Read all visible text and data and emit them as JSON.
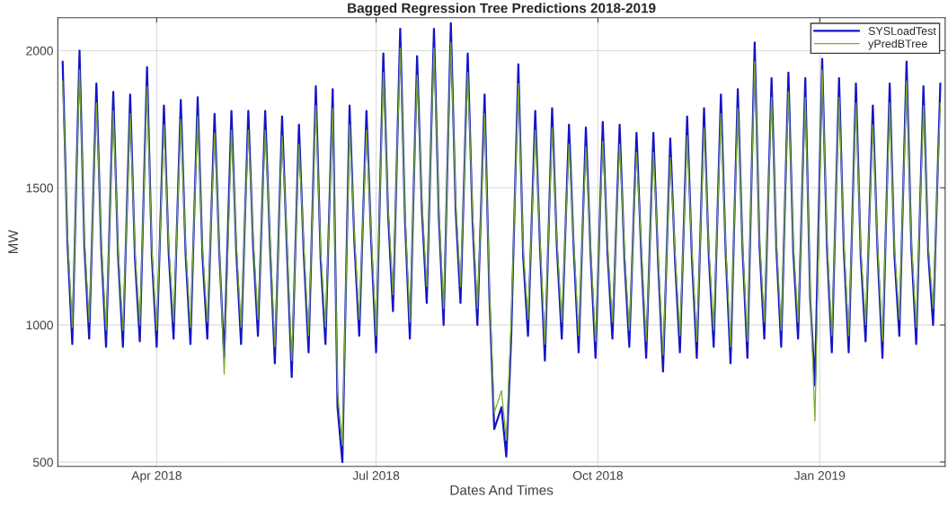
{
  "chart_data": {
    "type": "line",
    "title": "Bagged Regression Tree Predictions 2018-2019",
    "xlabel": "Dates And Times",
    "ylabel": "MW",
    "x": [
      "2018-02-21",
      "2018-02-23",
      "2018-02-25",
      "2018-02-28",
      "2018-03-02",
      "2018-03-04",
      "2018-03-07",
      "2018-03-09",
      "2018-03-11",
      "2018-03-14",
      "2018-03-16",
      "2018-03-18",
      "2018-03-21",
      "2018-03-23",
      "2018-03-25",
      "2018-03-28",
      "2018-03-30",
      "2018-04-01",
      "2018-04-04",
      "2018-04-06",
      "2018-04-08",
      "2018-04-11",
      "2018-04-13",
      "2018-04-15",
      "2018-04-18",
      "2018-04-20",
      "2018-04-22",
      "2018-04-25",
      "2018-04-27",
      "2018-04-29",
      "2018-05-02",
      "2018-05-04",
      "2018-05-06",
      "2018-05-09",
      "2018-05-11",
      "2018-05-13",
      "2018-05-16",
      "2018-05-18",
      "2018-05-20",
      "2018-05-23",
      "2018-05-25",
      "2018-05-27",
      "2018-05-30",
      "2018-06-01",
      "2018-06-03",
      "2018-06-06",
      "2018-06-08",
      "2018-06-10",
      "2018-06-13",
      "2018-06-15",
      "2018-06-17",
      "2018-06-20",
      "2018-06-22",
      "2018-06-24",
      "2018-06-27",
      "2018-06-29",
      "2018-07-01",
      "2018-07-04",
      "2018-07-06",
      "2018-07-08",
      "2018-07-11",
      "2018-07-13",
      "2018-07-15",
      "2018-07-18",
      "2018-07-20",
      "2018-07-22",
      "2018-07-25",
      "2018-07-27",
      "2018-07-29",
      "2018-08-01",
      "2018-08-03",
      "2018-08-05",
      "2018-08-08",
      "2018-08-10",
      "2018-08-12",
      "2018-08-15",
      "2018-08-17",
      "2018-08-19",
      "2018-08-22",
      "2018-08-24",
      "2018-08-26",
      "2018-08-29",
      "2018-08-31",
      "2018-09-02",
      "2018-09-05",
      "2018-09-07",
      "2018-09-09",
      "2018-09-12",
      "2018-09-14",
      "2018-09-16",
      "2018-09-19",
      "2018-09-21",
      "2018-09-23",
      "2018-09-26",
      "2018-09-28",
      "2018-09-30",
      "2018-10-03",
      "2018-10-05",
      "2018-10-07",
      "2018-10-10",
      "2018-10-12",
      "2018-10-14",
      "2018-10-17",
      "2018-10-19",
      "2018-10-21",
      "2018-10-24",
      "2018-10-26",
      "2018-10-28",
      "2018-10-31",
      "2018-11-02",
      "2018-11-04",
      "2018-11-07",
      "2018-11-09",
      "2018-11-11",
      "2018-11-14",
      "2018-11-16",
      "2018-11-18",
      "2018-11-21",
      "2018-11-23",
      "2018-11-25",
      "2018-11-28",
      "2018-11-30",
      "2018-12-02",
      "2018-12-05",
      "2018-12-07",
      "2018-12-09",
      "2018-12-12",
      "2018-12-14",
      "2018-12-16",
      "2018-12-19",
      "2018-12-21",
      "2018-12-23",
      "2018-12-26",
      "2018-12-28",
      "2018-12-30",
      "2019-01-02",
      "2019-01-04",
      "2019-01-06",
      "2019-01-09",
      "2019-01-11",
      "2019-01-13",
      "2019-01-16",
      "2019-01-18",
      "2019-01-20",
      "2019-01-23",
      "2019-01-25",
      "2019-01-27",
      "2019-01-30",
      "2019-02-01",
      "2019-02-03",
      "2019-02-06",
      "2019-02-08",
      "2019-02-10",
      "2019-02-13",
      "2019-02-15",
      "2019-02-17",
      "2019-02-20"
    ],
    "series": [
      {
        "name": "SYSLoadTest",
        "color": "#1414c8",
        "values": [
          1960,
          1300,
          930,
          2000,
          1290,
          950,
          1880,
          1280,
          920,
          1850,
          1250,
          920,
          1840,
          1240,
          940,
          1940,
          1250,
          920,
          1800,
          1260,
          950,
          1820,
          1260,
          930,
          1830,
          1250,
          950,
          1770,
          1260,
          880,
          1780,
          1270,
          930,
          1780,
          1290,
          960,
          1780,
          1290,
          860,
          1760,
          1280,
          810,
          1730,
          1260,
          900,
          1870,
          1240,
          930,
          1860,
          700,
          500,
          1800,
          1300,
          960,
          1780,
          1300,
          900,
          1990,
          1400,
          1050,
          2080,
          1380,
          950,
          1980,
          1420,
          1080,
          2080,
          1400,
          1000,
          2100,
          1420,
          1080,
          1990,
          1380,
          1000,
          1840,
          1100,
          620,
          700,
          520,
          950,
          1950,
          1250,
          960,
          1780,
          1280,
          870,
          1790,
          1280,
          950,
          1730,
          1270,
          900,
          1720,
          1250,
          880,
          1740,
          1260,
          950,
          1730,
          1240,
          920,
          1700,
          1250,
          880,
          1700,
          1220,
          830,
          1680,
          1230,
          900,
          1760,
          1240,
          880,
          1790,
          1250,
          920,
          1840,
          1260,
          860,
          1860,
          1270,
          880,
          2030,
          1290,
          950,
          1900,
          1280,
          920,
          1920,
          1270,
          950,
          1900,
          1100,
          780,
          1970,
          1280,
          900,
          1900,
          1270,
          900,
          1880,
          1250,
          940,
          1800,
          1260,
          880,
          1880,
          1250,
          960,
          1960,
          1280,
          930,
          1870,
          1260,
          1000,
          1880
        ]
      },
      {
        "name": "yPredBTree",
        "color": "#77ac30",
        "values": [
          1890,
          1330,
          990,
          1930,
          1320,
          1010,
          1810,
          1310,
          980,
          1780,
          1280,
          980,
          1770,
          1270,
          1000,
          1870,
          1280,
          980,
          1730,
          1290,
          1010,
          1750,
          1290,
          990,
          1760,
          1280,
          1010,
          1700,
          1290,
          820,
          1710,
          1300,
          990,
          1710,
          1320,
          1020,
          1710,
          1320,
          920,
          1690,
          1310,
          870,
          1660,
          1290,
          960,
          1800,
          1270,
          990,
          1790,
          760,
          560,
          1730,
          1330,
          1020,
          1710,
          1330,
          960,
          1920,
          1430,
          1110,
          2010,
          1410,
          1010,
          1910,
          1450,
          1140,
          2010,
          1430,
          1060,
          2030,
          1450,
          1140,
          1920,
          1410,
          1060,
          1770,
          1130,
          680,
          760,
          580,
          1010,
          1880,
          1280,
          1020,
          1710,
          1310,
          930,
          1720,
          1310,
          1010,
          1660,
          1300,
          960,
          1650,
          1280,
          940,
          1670,
          1290,
          1010,
          1660,
          1270,
          980,
          1630,
          1280,
          940,
          1630,
          1250,
          890,
          1610,
          1260,
          960,
          1690,
          1270,
          940,
          1720,
          1280,
          980,
          1770,
          1290,
          920,
          1790,
          1300,
          940,
          1960,
          1320,
          1010,
          1830,
          1310,
          980,
          1850,
          1300,
          1010,
          1830,
          1130,
          650,
          1930,
          1310,
          960,
          1830,
          1300,
          960,
          1810,
          1280,
          1000,
          1730,
          1290,
          940,
          1810,
          1280,
          1020,
          1890,
          1310,
          990,
          1800,
          1290,
          1060,
          1810
        ]
      }
    ],
    "xlim": [
      "2018-02-19",
      "2019-02-22"
    ],
    "xticks": [
      {
        "value": "2018-04-01",
        "label": "Apr 2018"
      },
      {
        "value": "2018-07-01",
        "label": "Jul 2018"
      },
      {
        "value": "2018-10-01",
        "label": "Oct 2018"
      },
      {
        "value": "2019-01-01",
        "label": "Jan 2019"
      }
    ],
    "ylim": [
      484,
      2120
    ],
    "yticks": [
      500,
      1000,
      1500,
      2000
    ],
    "grid": true,
    "legend": "top right"
  }
}
